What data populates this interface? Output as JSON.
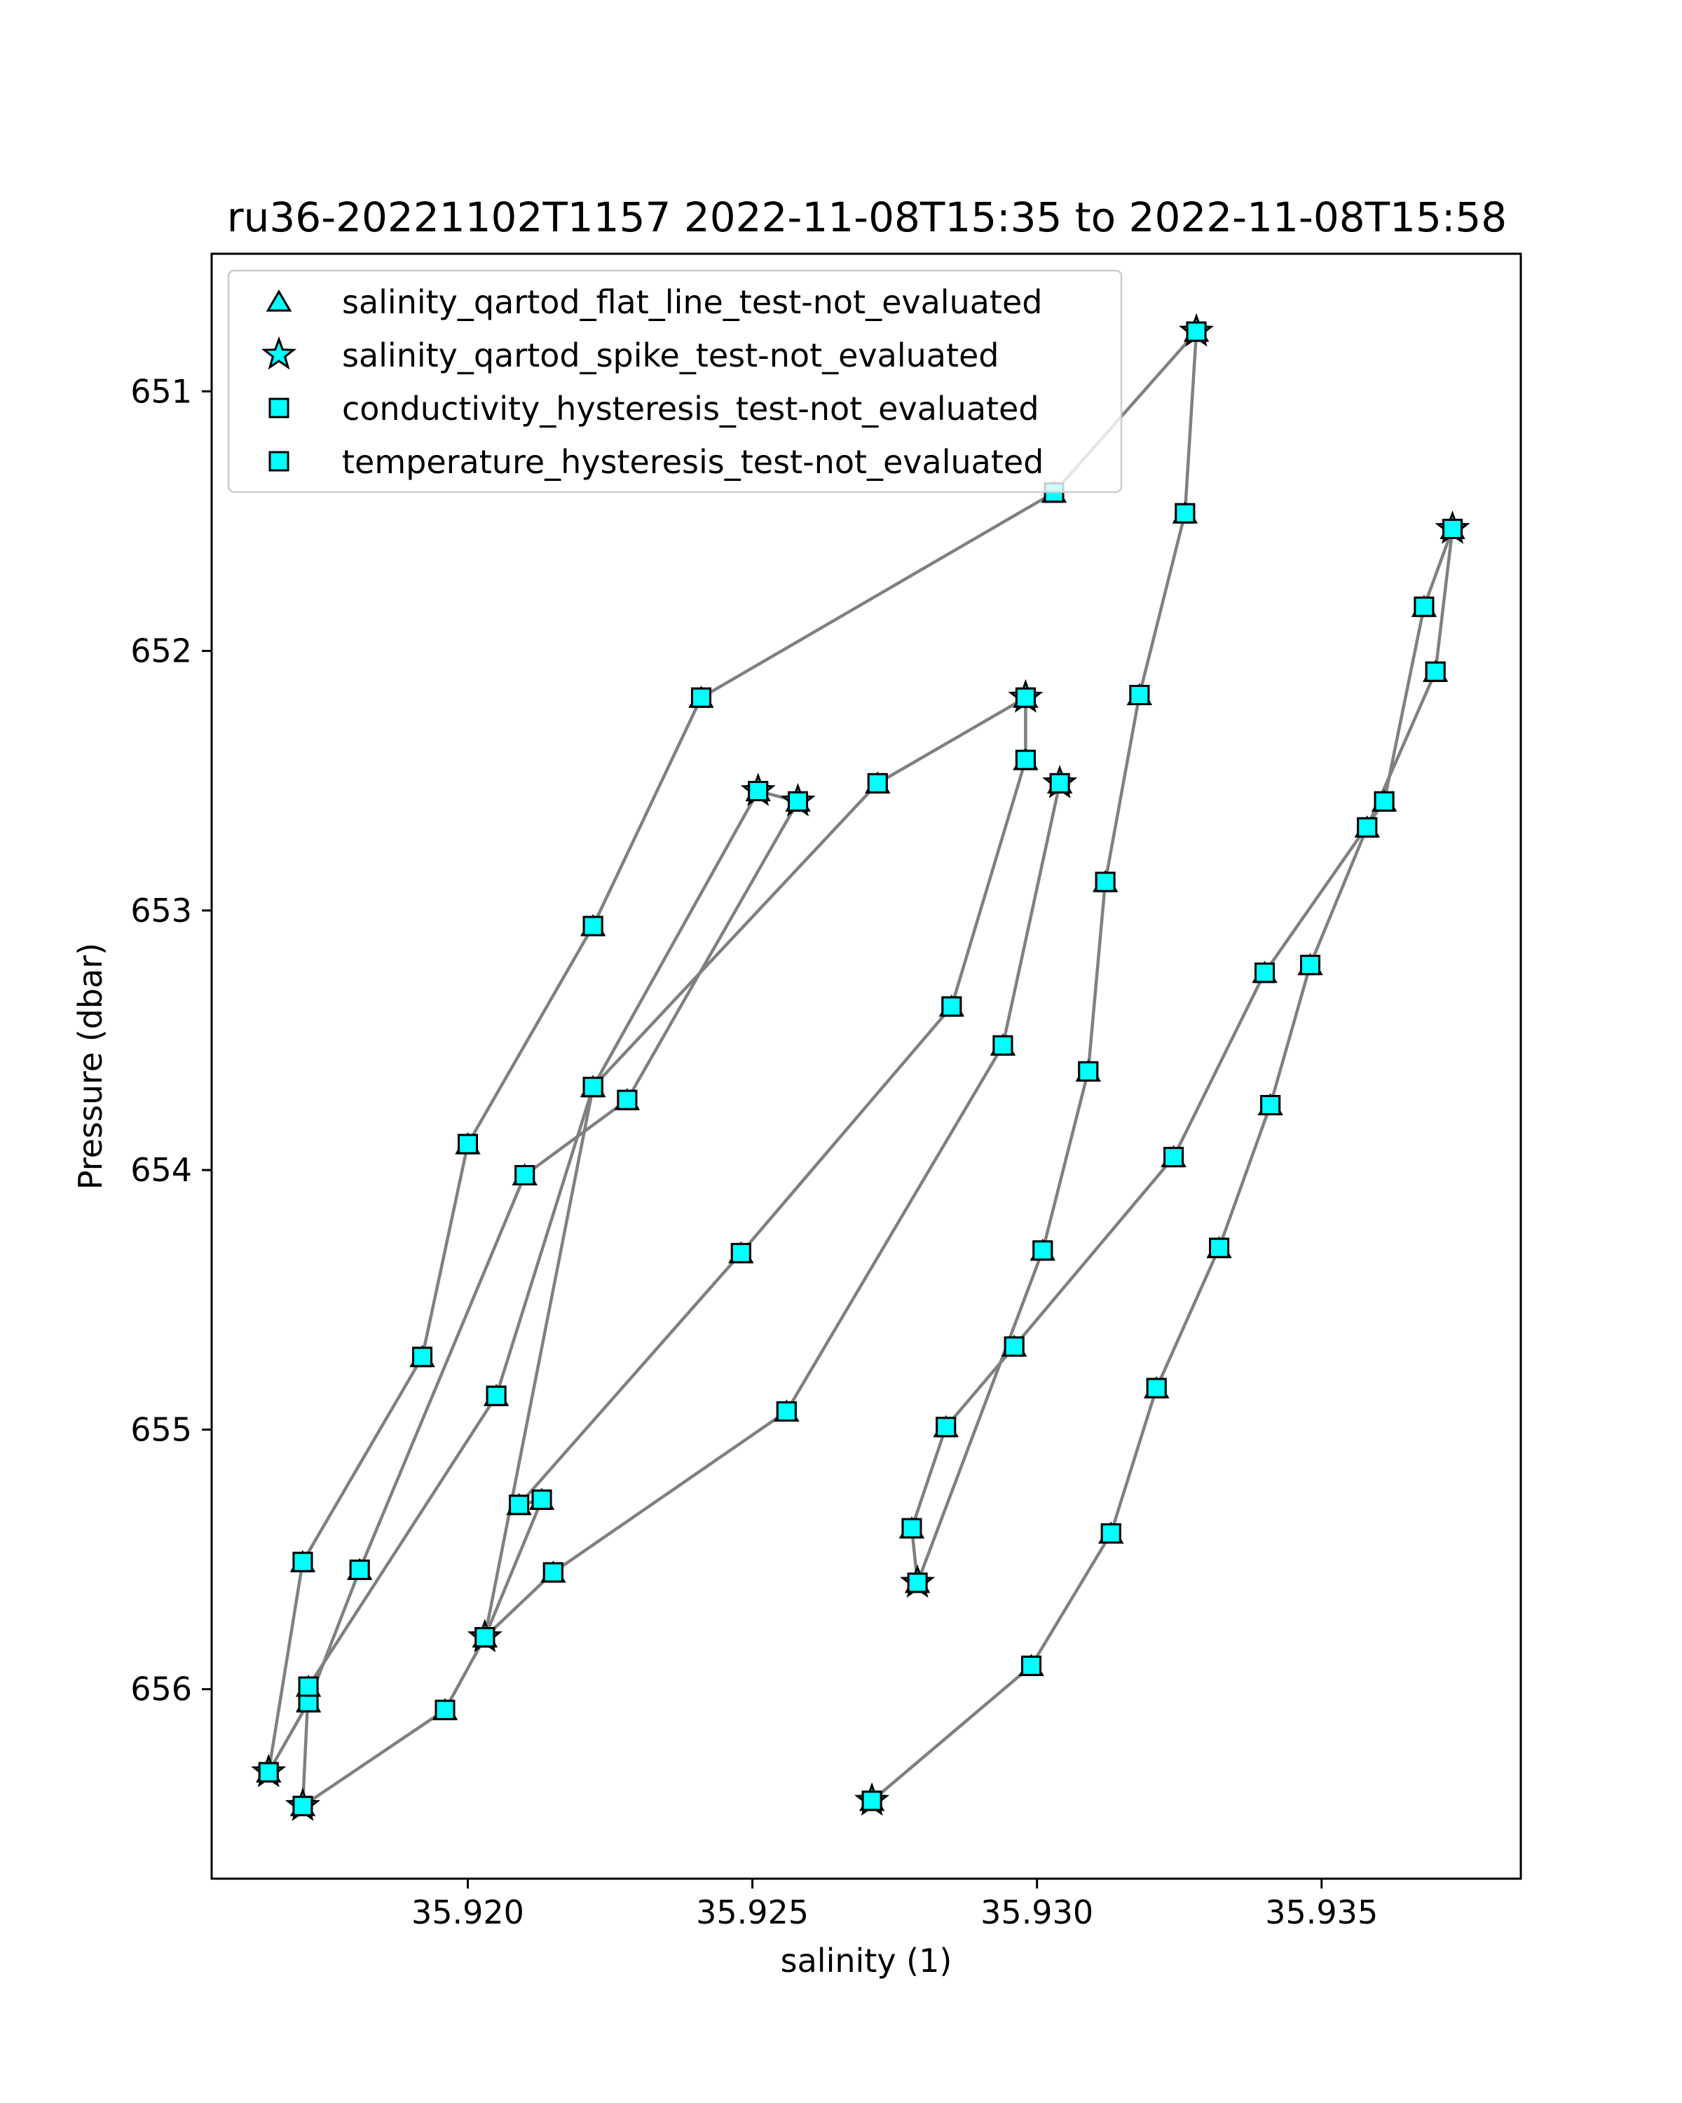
{
  "chart_data": {
    "type": "line",
    "title": "ru36-20221102T1157 2022-11-08T15:35 to 2022-11-08T15:58",
    "xlabel": "salinity (1)",
    "ylabel": "Pressure (dbar)",
    "xlim": [
      35.9155,
      35.9385
    ],
    "ylim": [
      656.73,
      650.47
    ],
    "y_inverted": true,
    "grid": false,
    "legend_position": "top-left",
    "x_ticks": [
      35.92,
      35.925,
      35.93,
      35.935
    ],
    "x_tick_labels": [
      "35.920",
      "35.925",
      "35.930",
      "35.935"
    ],
    "y_ticks": [
      651,
      652,
      653,
      654,
      655,
      656
    ],
    "y_tick_labels": [
      "651",
      "652",
      "653",
      "654",
      "655",
      "656"
    ],
    "line_color": "#808080",
    "marker_color": "#00ffff",
    "marker_edge_color": "#000000",
    "x": [
      35.9271,
      35.9299,
      35.9313,
      35.9321,
      35.9332,
      35.9341,
      35.9348,
      35.9358,
      35.937,
      35.9373,
      35.9368,
      35.9361,
      35.934,
      35.9324,
      35.9296,
      35.9284,
      35.9278,
      35.9279,
      35.9301,
      35.9309,
      35.9312,
      35.9318,
      35.9326,
      35.9328,
      35.9303,
      35.9241,
      35.9222,
      35.92,
      35.9192,
      35.9171,
      35.9165,
      35.9172,
      35.9181,
      35.921,
      35.9228,
      35.9258,
      35.9251,
      35.9222,
      35.9205,
      35.9172,
      35.9171,
      35.9196,
      35.9203,
      35.9213,
      35.9209,
      35.9248,
      35.9285,
      35.9298,
      35.9298,
      35.9272,
      35.9222,
      35.9203,
      35.9215,
      35.9256,
      35.9294,
      35.9304
    ],
    "series": [
      {
        "name": "salinity_qartod_flat_line_test-not_evaluated",
        "marker": "triangle",
        "y": [
          656.43,
          655.91,
          655.4,
          654.84,
          654.3,
          653.75,
          653.21,
          652.68,
          652.08,
          651.53,
          651.83,
          652.58,
          653.24,
          653.95,
          654.68,
          654.99,
          655.38,
          655.59,
          654.31,
          653.62,
          652.89,
          652.17,
          651.47,
          650.77,
          651.39,
          652.18,
          653.06,
          653.9,
          654.72,
          655.51,
          656.32,
          656.05,
          655.54,
          654.02,
          653.73,
          652.58,
          652.54,
          653.68,
          654.87,
          655.99,
          656.45,
          656.08,
          655.8,
          655.27,
          655.29,
          654.32,
          653.37,
          652.42,
          652.18,
          652.51,
          653.68,
          655.8,
          655.55,
          654.93,
          653.52,
          652.51
        ]
      },
      {
        "name": "salinity_qartod_spike_test-not_evaluated",
        "marker": "star",
        "y": [
          656.43,
          655.91,
          655.4,
          654.84,
          654.3,
          653.75,
          653.21,
          652.68,
          652.08,
          651.53,
          651.83,
          652.58,
          653.24,
          653.95,
          654.68,
          654.99,
          655.38,
          655.59,
          654.31,
          653.62,
          652.89,
          652.17,
          651.47,
          650.77,
          651.39,
          652.18,
          653.06,
          653.9,
          654.72,
          655.51,
          656.32,
          656.05,
          655.54,
          654.02,
          653.73,
          652.58,
          652.54,
          653.68,
          654.87,
          655.99,
          656.45,
          656.08,
          655.8,
          655.27,
          655.29,
          654.32,
          653.37,
          652.42,
          652.18,
          652.51,
          653.68,
          655.8,
          655.55,
          654.93,
          653.52,
          652.51
        ]
      },
      {
        "name": "conductivity_hysteresis_test-not_evaluated",
        "marker": "square",
        "y": [
          656.43,
          655.91,
          655.4,
          654.84,
          654.3,
          653.75,
          653.21,
          652.68,
          652.08,
          651.53,
          651.83,
          652.58,
          653.24,
          653.95,
          654.68,
          654.99,
          655.38,
          655.59,
          654.31,
          653.62,
          652.89,
          652.17,
          651.47,
          650.77,
          651.39,
          652.18,
          653.06,
          653.9,
          654.72,
          655.51,
          656.32,
          656.05,
          655.54,
          654.02,
          653.73,
          652.58,
          652.54,
          653.68,
          654.87,
          655.99,
          656.45,
          656.08,
          655.8,
          655.27,
          655.29,
          654.32,
          653.37,
          652.42,
          652.18,
          652.51,
          653.68,
          655.8,
          655.55,
          654.93,
          653.52,
          652.51
        ]
      },
      {
        "name": "temperature_hysteresis_test-not_evaluated",
        "marker": "square",
        "y": [
          656.43,
          655.91,
          655.4,
          654.84,
          654.3,
          653.75,
          653.21,
          652.68,
          652.08,
          651.53,
          651.83,
          652.58,
          653.24,
          653.95,
          654.68,
          654.99,
          655.38,
          655.59,
          654.31,
          653.62,
          652.89,
          652.17,
          651.47,
          650.77,
          651.39,
          652.18,
          653.06,
          653.9,
          654.72,
          655.51,
          656.32,
          656.05,
          655.54,
          654.02,
          653.73,
          652.58,
          652.54,
          653.68,
          654.87,
          655.99,
          656.45,
          656.08,
          655.8,
          655.27,
          655.29,
          654.32,
          653.37,
          652.42,
          652.18,
          652.51,
          653.68,
          655.8,
          655.55,
          654.93,
          653.52,
          652.51
        ]
      }
    ],
    "star_marked_points": [
      0,
      9,
      17,
      23,
      30,
      35,
      36,
      40,
      48,
      51,
      55
    ]
  }
}
